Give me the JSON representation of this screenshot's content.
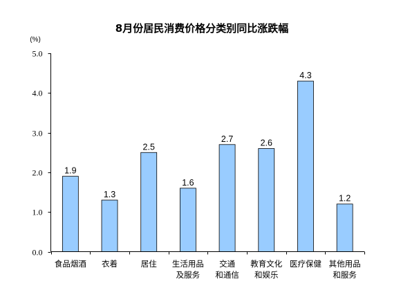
{
  "chart_data": {
    "type": "bar",
    "title": "8月份居民消费价格分类别同比涨跌幅",
    "xlabel": "",
    "ylabel": "(%)",
    "categories": [
      "食品烟酒",
      "衣着",
      "居住",
      "生活用品及服务",
      "交通和通信",
      "教育文化和娱乐",
      "医疗保健",
      "其他用品和服务"
    ],
    "values": [
      1.9,
      1.3,
      2.5,
      1.6,
      2.7,
      2.6,
      4.3,
      1.2
    ],
    "ylim": [
      0,
      5
    ],
    "yticks": [
      "0.0",
      "1.0",
      "2.0",
      "3.0",
      "4.0",
      "5.0"
    ],
    "grid": false,
    "legend": false,
    "colors": {
      "bar_fill": "#99CCFF",
      "bar_border": "#000000",
      "axis": "#000000"
    }
  }
}
